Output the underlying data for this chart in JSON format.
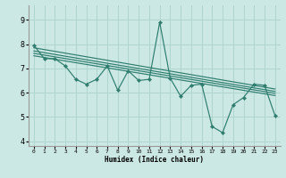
{
  "xlabel": "Humidex (Indice chaleur)",
  "ylabel": "",
  "bg_color": "#cce8e4",
  "grid_color": "#b0d4ce",
  "line_color": "#2e7d6e",
  "xlim": [
    -0.5,
    23.5
  ],
  "ylim": [
    3.8,
    9.6
  ],
  "yticks": [
    4,
    5,
    6,
    7,
    8,
    9
  ],
  "xticks": [
    0,
    1,
    2,
    3,
    4,
    5,
    6,
    7,
    8,
    9,
    10,
    11,
    12,
    13,
    14,
    15,
    16,
    17,
    18,
    19,
    20,
    21,
    22,
    23
  ],
  "main_x": [
    0,
    1,
    2,
    3,
    4,
    5,
    6,
    7,
    8,
    9,
    10,
    11,
    12,
    13,
    14,
    15,
    16,
    17,
    18,
    19,
    20,
    21,
    22,
    23
  ],
  "main_y": [
    7.95,
    7.4,
    7.4,
    7.1,
    6.55,
    6.35,
    6.55,
    7.1,
    6.1,
    6.9,
    6.5,
    6.55,
    8.9,
    6.6,
    5.85,
    6.3,
    6.35,
    4.6,
    4.35,
    5.5,
    5.8,
    6.35,
    6.3,
    5.05
  ],
  "trends": [
    [
      7.85,
      6.15
    ],
    [
      7.72,
      6.05
    ],
    [
      7.62,
      5.97
    ],
    [
      7.52,
      5.88
    ]
  ]
}
